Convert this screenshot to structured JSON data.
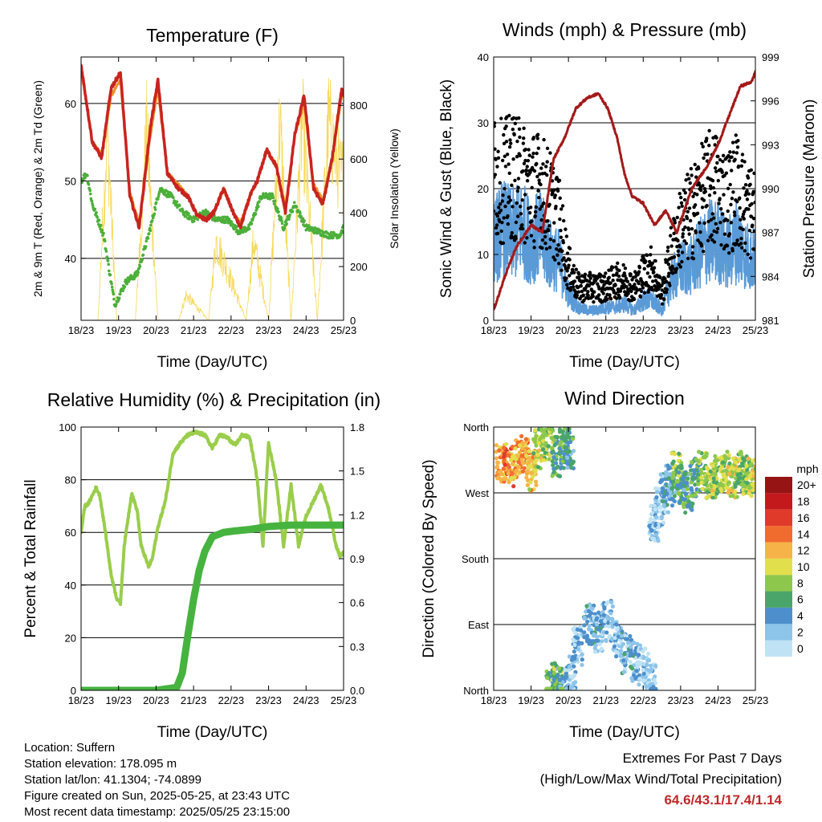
{
  "xticks": [
    "18/23",
    "19/23",
    "20/23",
    "21/23",
    "22/23",
    "23/23",
    "24/23",
    "25/23"
  ],
  "xlabel": "Time (Day/UTC)",
  "panels": {
    "temperature": {
      "title": "Temperature (F)",
      "ylabel": "2m & 9m T (Red, Orange) & 2m Td (Green)",
      "y2label": "Solar Insolation (Yellow)",
      "yticks": [
        "40",
        "50",
        "60"
      ],
      "y2ticks": [
        "0",
        "200",
        "400",
        "600",
        "800"
      ]
    },
    "winds": {
      "title": "Winds (mph) & Pressure (mb)",
      "ylabel": "Sonic Wind & Gust (Blue, Black)",
      "y2label": "Station Pressure (Maroon)",
      "yticks": [
        "0",
        "10",
        "20",
        "30",
        "40"
      ],
      "y2ticks": [
        "981",
        "984",
        "987",
        "990",
        "993",
        "996",
        "999"
      ]
    },
    "humidity": {
      "title": "Relative Humidity (%) & Precipitation (in)",
      "ylabel": "Percent & Total Rainfall",
      "yticks": [
        "0",
        "20",
        "40",
        "60",
        "80",
        "100"
      ],
      "y2ticks": [
        "0.0",
        "0.3",
        "0.6",
        "0.9",
        "1.2",
        "1.5",
        "1.8"
      ]
    },
    "direction": {
      "title": "Wind Direction",
      "ylabel": "Direction (Colored By Speed)",
      "yticks": [
        "North",
        "East",
        "South",
        "West",
        "North"
      ],
      "legend_title": "mph",
      "legend_labels": [
        "0",
        "2",
        "4",
        "6",
        "8",
        "10",
        "12",
        "14",
        "16",
        "18",
        "20+"
      ]
    }
  },
  "colors": {
    "temp2m": "#c8241f",
    "temp9m": "#f2922c",
    "dewpoint": "#4caf3a",
    "solar": "#f6d95a",
    "wind": "#5a9ad6",
    "gust": "#000000",
    "pressure": "#a31a1a",
    "rh": "#9acd4c",
    "precip": "#46b33f",
    "speed_scale": [
      "#bfe3f5",
      "#8cc4ea",
      "#4d8fcc",
      "#4aa56a",
      "#8dc84c",
      "#e2df4c",
      "#f6b347",
      "#f06c2e",
      "#e03a2a",
      "#c3191d",
      "#961414"
    ]
  },
  "chart_data": [
    {
      "type": "line",
      "title": "Temperature (F)",
      "xlabel": "Time (Day/UTC)",
      "ylabel": "2m & 9m T (Red, Orange) & 2m Td (Green)",
      "y2label": "Solar Insolation (Yellow)",
      "xlim": [
        0,
        7
      ],
      "ylim": [
        32,
        66
      ],
      "y2lim": [
        0,
        980
      ],
      "series": [
        {
          "axis": "left",
          "x": [
            0,
            0.3,
            0.55,
            0.8,
            1.05,
            1.3,
            1.55,
            1.85,
            2.05,
            2.3,
            2.6,
            2.85,
            3.1,
            3.35,
            3.55,
            3.8,
            4.05,
            4.25,
            4.5,
            4.7,
            4.95,
            5.2,
            5.45,
            5.7,
            5.95,
            6.2,
            6.45,
            6.7,
            6.95,
            7
          ],
          "y": [
            65,
            55,
            53,
            62,
            64,
            48,
            44,
            57,
            63,
            51,
            49,
            48,
            45.5,
            45,
            46,
            49,
            46,
            44,
            48,
            50,
            54,
            52,
            46,
            56,
            61,
            49,
            47,
            53,
            62,
            61
          ]
        },
        {
          "axis": "left",
          "x": [
            0,
            0.3,
            0.55,
            0.8,
            1.05,
            1.3,
            1.55,
            1.85,
            2.05,
            2.3,
            2.6,
            2.85,
            3.1,
            3.35,
            3.55,
            3.8,
            4.05,
            4.25,
            4.5,
            4.7,
            4.95,
            5.2,
            5.45,
            5.7,
            5.95,
            6.2,
            6.45,
            6.7,
            6.95,
            7
          ],
          "y": [
            64.5,
            55,
            53.5,
            61,
            63,
            48.5,
            44.5,
            56,
            62,
            51,
            49.5,
            48,
            45.5,
            45,
            46,
            49,
            46,
            44.5,
            48,
            50,
            54,
            52,
            46.5,
            56,
            60,
            49.5,
            47.5,
            53,
            61,
            61
          ]
        },
        {
          "axis": "left",
          "x": [
            0,
            0.15,
            0.3,
            0.6,
            0.9,
            1.0,
            1.2,
            1.5,
            1.8,
            2.1,
            2.4,
            2.7,
            3.0,
            3.3,
            3.6,
            3.9,
            4.2,
            4.5,
            4.8,
            5.1,
            5.4,
            5.7,
            6.0,
            6.3,
            6.6,
            6.9,
            7
          ],
          "y": [
            50,
            51,
            47,
            43,
            34,
            35,
            37,
            38,
            43,
            49,
            48,
            46,
            45,
            46,
            45,
            45,
            43.5,
            44,
            48,
            48,
            44,
            47,
            44,
            43.5,
            43,
            43,
            44
          ]
        },
        {
          "axis": "right",
          "x": [
            0.45,
            0.7,
            0.95,
            1.45,
            1.75,
            2.05,
            2.6,
            2.8,
            3.4,
            3.6,
            4.4,
            4.6,
            5.0,
            5.3,
            5.6,
            5.9,
            6.3,
            6.6,
            6.9
          ],
          "y": [
            0,
            900,
            0,
            0,
            900,
            0,
            0,
            120,
            0,
            380,
            0,
            380,
            0,
            950,
            0,
            950,
            0,
            950,
            700
          ]
        }
      ]
    },
    {
      "type": "line",
      "title": "Winds (mph) & Pressure (mb)",
      "xlabel": "Time (Day/UTC)",
      "ylabel": "Sonic Wind & Gust (Blue, Black)",
      "y2label": "Station Pressure (Maroon)",
      "xlim": [
        0,
        7
      ],
      "ylim": [
        0,
        40
      ],
      "y2lim": [
        981,
        999
      ],
      "series": [
        {
          "axis": "left",
          "x": [
            0,
            0.25,
            0.5,
            0.75,
            1.0,
            1.25,
            1.5,
            1.75,
            2.0,
            2.25,
            2.5,
            2.75,
            3.0,
            3.25,
            3.5,
            3.75,
            4.0,
            4.25,
            4.5,
            4.75,
            5.0,
            5.25,
            5.5,
            5.75,
            6.0,
            6.25,
            6.5,
            6.75,
            7
          ],
          "y": [
            12,
            14,
            13,
            14,
            12,
            13,
            10,
            9,
            4,
            2,
            1.5,
            1.5,
            2,
            2,
            2.5,
            1.5,
            3,
            3,
            1.5,
            6,
            8,
            8,
            10,
            12,
            12,
            10,
            12,
            10,
            9
          ]
        },
        {
          "axis": "left",
          "x": [
            0,
            0.25,
            0.5,
            0.75,
            1.0,
            1.25,
            1.5,
            1.75,
            2.0,
            2.25,
            2.5,
            2.75,
            3.0,
            3.25,
            3.5,
            3.75,
            4.0,
            4.25,
            4.5,
            4.75,
            5.0,
            5.25,
            5.5,
            5.75,
            6.0,
            6.25,
            6.5,
            6.75,
            7
          ],
          "y": [
            22,
            21,
            22,
            21,
            20,
            20,
            18,
            15,
            8,
            5,
            5,
            5,
            5,
            6,
            6,
            5,
            7,
            8,
            4,
            10,
            14,
            16,
            18,
            20,
            20,
            18,
            20,
            17,
            16
          ]
        },
        {
          "axis": "right",
          "x": [
            0,
            0.3,
            0.6,
            1.0,
            1.3,
            1.6,
            1.9,
            2.2,
            2.5,
            2.8,
            3.05,
            3.3,
            3.5,
            3.7,
            4.0,
            4.3,
            4.6,
            4.9,
            5.3,
            5.7,
            6.0,
            6.3,
            6.6,
            6.9,
            7
          ],
          "y": [
            981.7,
            984,
            986,
            987.5,
            987,
            992,
            993.5,
            995.5,
            996.2,
            996.5,
            995.5,
            993.5,
            991,
            989.5,
            989,
            987.5,
            988.5,
            987,
            990,
            991.5,
            993,
            995,
            997,
            997.3,
            998
          ]
        }
      ]
    },
    {
      "type": "line",
      "title": "Relative Humidity (%) & Precipitation (in)",
      "xlabel": "Time (Day/UTC)",
      "ylabel": "Percent & Total Rainfall",
      "xlim": [
        0,
        7
      ],
      "ylim": [
        0,
        100
      ],
      "y2lim": [
        0,
        1.8
      ],
      "series": [
        {
          "axis": "left",
          "x": [
            0,
            0.1,
            0.2,
            0.4,
            0.5,
            0.65,
            0.8,
            0.95,
            1.05,
            1.15,
            1.35,
            1.5,
            1.6,
            1.8,
            1.9,
            2.05,
            2.25,
            2.45,
            2.65,
            2.85,
            3.05,
            3.3,
            3.5,
            3.7,
            3.9,
            4.1,
            4.3,
            4.5,
            4.7,
            4.85,
            5.0,
            5.2,
            5.4,
            5.6,
            5.8,
            6.0,
            6.2,
            6.4,
            6.6,
            6.8,
            6.9,
            7
          ],
          "y": [
            60,
            70,
            71,
            77,
            74,
            60,
            44,
            35,
            33,
            55,
            75,
            68,
            55,
            47,
            50,
            62,
            72,
            90,
            94,
            97,
            98,
            97,
            92,
            97,
            96,
            93,
            97,
            96,
            80,
            55,
            94,
            80,
            55,
            78,
            55,
            66,
            72,
            78,
            69,
            55,
            51,
            52
          ]
        },
        {
          "axis": "right",
          "x": [
            0,
            1,
            2,
            2.55,
            2.7,
            2.85,
            3.0,
            3.15,
            3.3,
            3.5,
            3.8,
            4.1,
            4.5,
            5.0,
            5.6,
            6.0,
            6.5,
            7
          ],
          "y": [
            0,
            0,
            0,
            0.02,
            0.12,
            0.38,
            0.62,
            0.82,
            0.95,
            1.05,
            1.08,
            1.09,
            1.1,
            1.12,
            1.13,
            1.13,
            1.13,
            1.13
          ]
        }
      ]
    },
    {
      "type": "scatter",
      "title": "Wind Direction",
      "xlabel": "Time (Day/UTC)",
      "ylabel": "Direction (Colored By Speed)",
      "xlim": [
        0,
        7
      ],
      "ylim": [
        0,
        360
      ],
      "legend_title": "mph",
      "series": [
        {
          "x": [
            0.2,
            0.4,
            0.6,
            0.8,
            1.0,
            1.2,
            1.45,
            1.7,
            1.9,
            2.0
          ],
          "y": [
            310,
            305,
            315,
            320,
            300,
            330,
            340,
            320,
            335,
            325
          ],
          "speed": [
            12,
            14,
            12,
            13,
            11,
            9,
            8,
            6,
            6,
            5
          ]
        },
        {
          "x": [
            1.55,
            1.7,
            1.85,
            2.05,
            2.25,
            2.55,
            2.8,
            3.05,
            3.3,
            3.55,
            3.8,
            4.0,
            4.2
          ],
          "y": [
            5,
            10,
            8,
            20,
            60,
            90,
            80,
            95,
            70,
            50,
            40,
            30,
            15
          ],
          "speed": [
            6,
            7,
            5,
            2,
            2,
            3,
            3,
            2,
            2,
            3,
            3,
            1,
            2
          ]
        },
        {
          "x": [
            4.3,
            4.45,
            4.6,
            4.75,
            4.9,
            5.05,
            5.2,
            5.4,
            5.6,
            5.8,
            6.0,
            6.2,
            6.4,
            6.6,
            6.8,
            6.95
          ],
          "y": [
            230,
            250,
            270,
            280,
            300,
            280,
            270,
            290,
            300,
            290,
            295,
            300,
            290,
            300,
            295,
            290
          ],
          "speed": [
            2,
            2,
            3,
            4,
            8,
            6,
            5,
            6,
            8,
            9,
            8,
            9,
            10,
            7,
            8,
            10
          ]
        }
      ]
    }
  ],
  "footer": {
    "location": "Location: Suffern",
    "elevation": "Station elevation: 178.095 m",
    "latlon": "Station lat/lon: 41.1304; -74.0899",
    "created": "Figure created on Sun, 2025-05-25, at 23:43 UTC",
    "recent": "Most recent data timestamp: 2025/05/25 23:15:00"
  },
  "extremes": {
    "title": "Extremes For Past 7 Days",
    "subtitle": "(High/Low/Max Wind/Total Precipitation)",
    "values": "64.6/43.1/17.4/1.14"
  }
}
